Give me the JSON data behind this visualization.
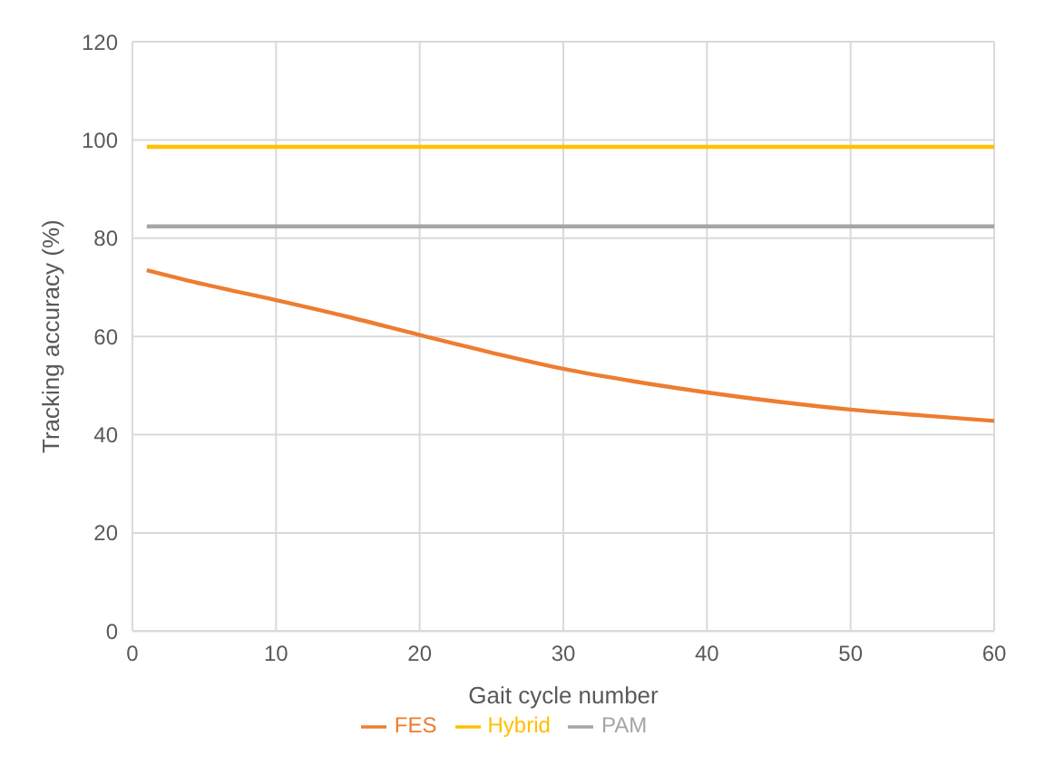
{
  "chart_data": {
    "type": "line",
    "xlabel": "Gait cycle number",
    "ylabel": "Tracking accuracy (%)",
    "x": [
      1,
      5,
      10,
      15,
      20,
      25,
      30,
      35,
      40,
      45,
      50,
      55,
      60
    ],
    "series": [
      {
        "name": "Hybrid",
        "color": "#ffc000",
        "values": [
          98.6,
          98.6,
          98.6,
          98.6,
          98.6,
          98.6,
          98.6,
          98.6,
          98.6,
          98.6,
          98.6,
          98.6,
          98.6
        ]
      },
      {
        "name": "PAM",
        "color": "#a5a5a5",
        "values": [
          82.4,
          82.4,
          82.4,
          82.4,
          82.4,
          82.4,
          82.4,
          82.4,
          82.4,
          82.4,
          82.4,
          82.4,
          82.4
        ]
      },
      {
        "name": "FES",
        "color": "#ed7d31",
        "values": [
          73.5,
          70.6,
          67.4,
          64,
          60.3,
          56.7,
          53.4,
          50.8,
          48.6,
          46.7,
          45.1,
          43.9,
          42.8
        ]
      }
    ],
    "xlim": [
      0,
      60
    ],
    "xticks": [
      0,
      10,
      20,
      30,
      40,
      50,
      60
    ],
    "ylim": [
      0,
      120
    ],
    "yticks": [
      0,
      20,
      40,
      60,
      80,
      100,
      120
    ],
    "grid": true,
    "legend": "bottom",
    "marker": "none",
    "line_style": "solid"
  }
}
